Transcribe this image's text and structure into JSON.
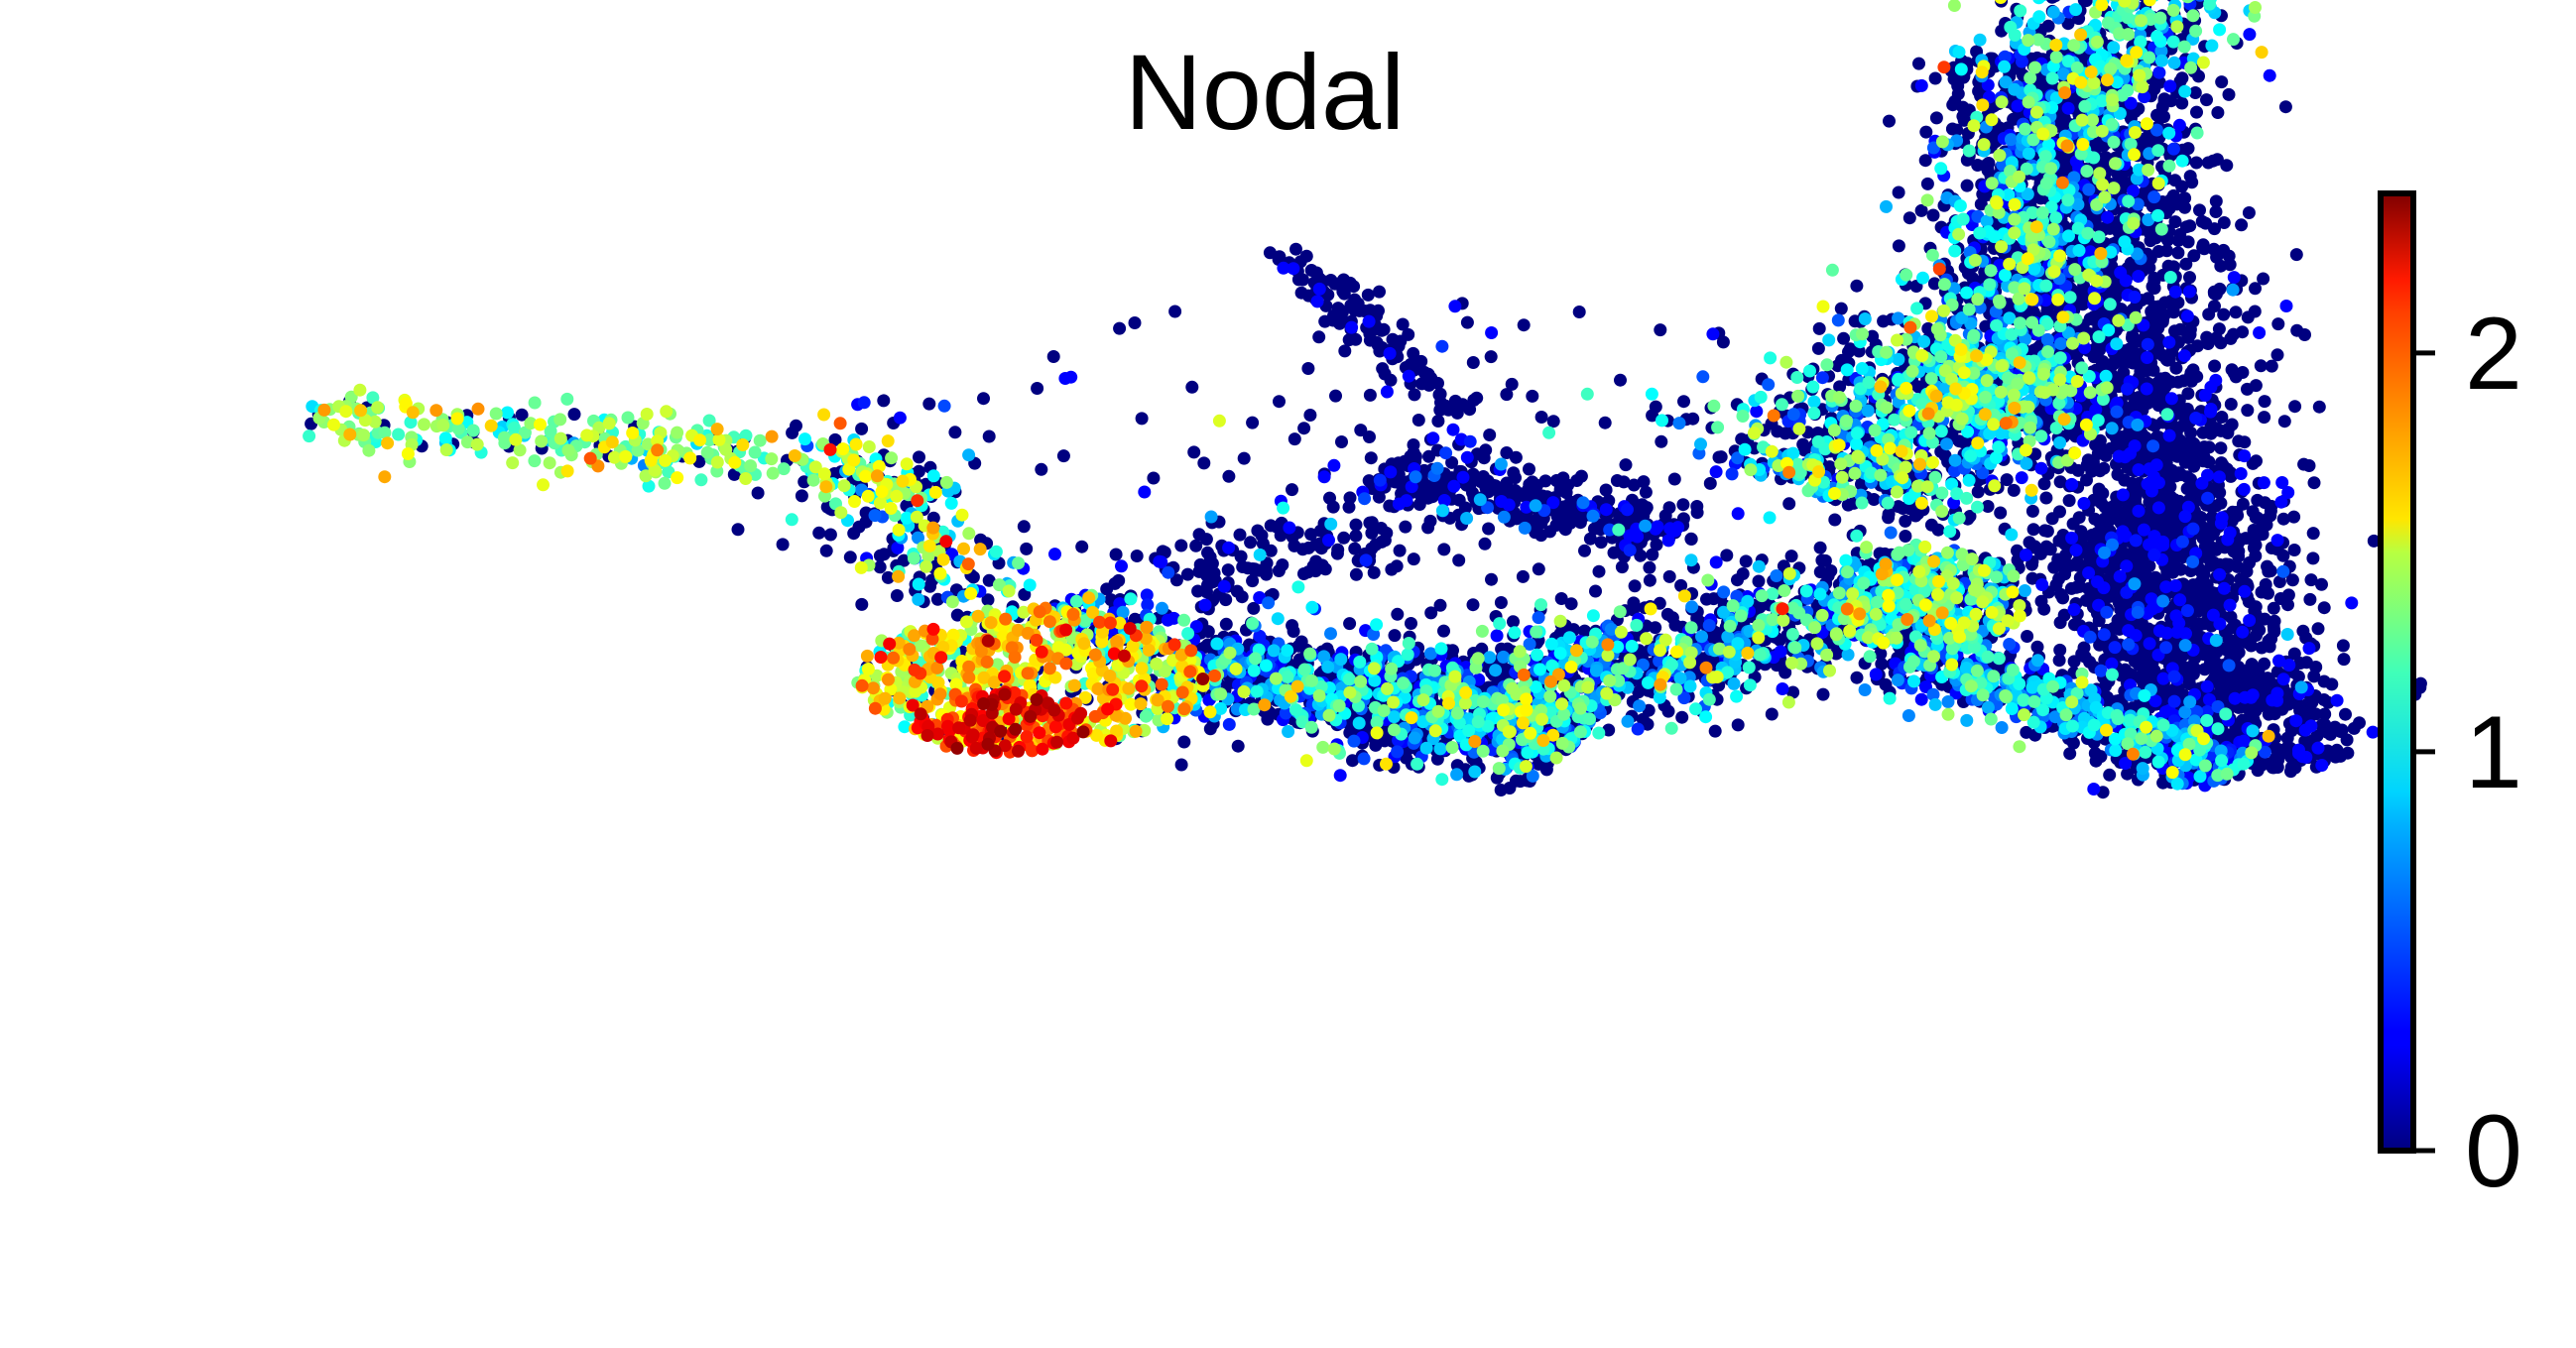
{
  "chart_data": {
    "type": "scatter",
    "title": "Nodal",
    "xlabel": "",
    "ylabel": "",
    "axes_visible": false,
    "grid": false,
    "colormap": "jet",
    "colorbar": {
      "range": [
        0,
        2.4
      ],
      "ticks": [
        0,
        1,
        2
      ],
      "tick_labels": [
        "0",
        "1",
        "2"
      ],
      "placement": "right"
    },
    "point_size": "small",
    "embedding_range": {
      "x": [
        0,
        100
      ],
      "y": [
        0,
        100
      ]
    },
    "background_regions_note_free": true,
    "clusters": [
      {
        "kind": "segment",
        "from": [
          1,
          79
        ],
        "to": [
          32,
          72
        ],
        "width": 5,
        "n": 320,
        "expr_mean": 1.25,
        "expr_sd": 0.25,
        "zero_frac": 0.15
      },
      {
        "kind": "segment",
        "from": [
          30,
          72
        ],
        "to": [
          35,
          58
        ],
        "width": 6,
        "n": 150,
        "expr_mean": 1.1,
        "expr_sd": 0.35,
        "zero_frac": 0.35
      },
      {
        "kind": "ellipse",
        "center": [
          38,
          49
        ],
        "radius": [
          9,
          8
        ],
        "n": 650,
        "expr_mean": 1.45,
        "expr_sd": 0.3,
        "zero_frac": 0.1
      },
      {
        "kind": "ellipse",
        "center": [
          36.5,
          44
        ],
        "radius": [
          4.5,
          3.5
        ],
        "n": 120,
        "expr_mean": 2.1,
        "expr_sd": 0.15,
        "zero_frac": 0.0
      },
      {
        "kind": "segment",
        "from": [
          40,
          58
        ],
        "to": [
          45,
          52
        ],
        "width": 5,
        "n": 120,
        "expr_mean": 0.6,
        "expr_sd": 0.45,
        "zero_frac": 0.5
      },
      {
        "kind": "segment",
        "from": [
          46,
          51
        ],
        "to": [
          66,
          42
        ],
        "width": 8,
        "n": 1200,
        "expr_mean": 0.7,
        "expr_sd": 0.4,
        "zero_frac": 0.55
      },
      {
        "kind": "segment",
        "from": [
          60,
          46
        ],
        "to": [
          86,
          60
        ],
        "width": 9,
        "n": 1100,
        "expr_mean": 0.8,
        "expr_sd": 0.4,
        "zero_frac": 0.5
      },
      {
        "kind": "segment",
        "from": [
          56,
          73
        ],
        "to": [
          71,
          65
        ],
        "width": 5,
        "n": 350,
        "expr_mean": 0.2,
        "expr_sd": 0.3,
        "zero_frac": 0.85
      },
      {
        "kind": "segment",
        "from": [
          45,
          60
        ],
        "to": [
          56,
          66
        ],
        "width": 7,
        "n": 120,
        "expr_mean": 0.15,
        "expr_sd": 0.3,
        "zero_frac": 0.9
      },
      {
        "kind": "segment",
        "from": [
          51,
          98
        ],
        "to": [
          60,
          79
        ],
        "width": 2,
        "n": 110,
        "expr_mean": 0.05,
        "expr_sd": 0.1,
        "zero_frac": 0.97
      },
      {
        "kind": "segment",
        "from": [
          78,
          70
        ],
        "to": [
          89,
          85
        ],
        "width": 12,
        "n": 900,
        "expr_mean": 0.85,
        "expr_sd": 0.35,
        "zero_frac": 0.45
      },
      {
        "kind": "segment",
        "from": [
          86,
          78
        ],
        "to": [
          94,
          128
        ],
        "width": 8,
        "n": 1400,
        "expr_mean": 0.9,
        "expr_sd": 0.35,
        "zero_frac": 0.4
      },
      {
        "kind": "segment",
        "from": [
          90,
          120
        ],
        "to": [
          97,
          63
        ],
        "width": 9,
        "n": 1700,
        "expr_mean": 0.1,
        "expr_sd": 0.2,
        "zero_frac": 0.9
      },
      {
        "kind": "segment",
        "from": [
          94,
          66
        ],
        "to": [
          101,
          38
        ],
        "width": 9,
        "n": 1200,
        "expr_mean": 0.15,
        "expr_sd": 0.25,
        "zero_frac": 0.85
      },
      {
        "kind": "segment",
        "from": [
          83,
          52
        ],
        "to": [
          100,
          39
        ],
        "width": 5,
        "n": 700,
        "expr_mean": 0.7,
        "expr_sd": 0.35,
        "zero_frac": 0.45
      },
      {
        "kind": "ellipse",
        "center": [
          84,
          58
        ],
        "radius": [
          5,
          6
        ],
        "n": 350,
        "expr_mean": 1.0,
        "expr_sd": 0.3,
        "zero_frac": 0.3
      },
      {
        "kind": "ellipse",
        "center": [
          56,
          70
        ],
        "radius": [
          34,
          22
        ],
        "n": 260,
        "expr_mean": 0.2,
        "expr_sd": 0.4,
        "zero_frac": 0.8
      }
    ]
  }
}
